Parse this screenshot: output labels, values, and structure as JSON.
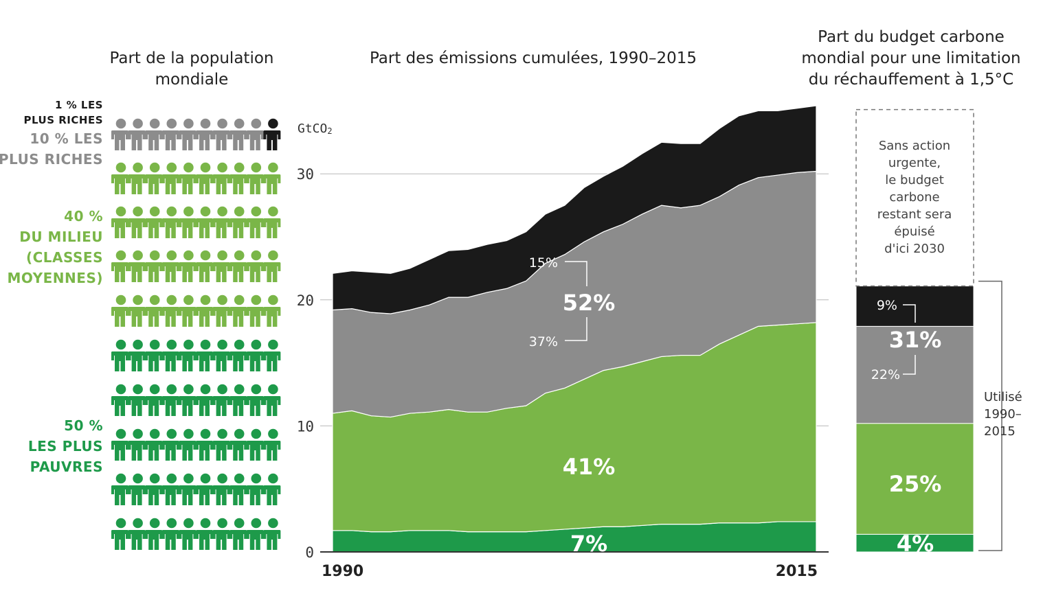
{
  "titles": {
    "population": [
      "Part de la population",
      "mondiale"
    ],
    "emissions": "Part des émissions cumulées, 1990–2015",
    "budget": [
      "Part du budget carbone",
      "mondial pour une limitation",
      "du réchauffement à 1,5°C"
    ]
  },
  "population_groups": [
    {
      "lines": [
        "1 % LES",
        "PLUS RICHES"
      ],
      "color": "#1a1a1a"
    },
    {
      "lines": [
        "10 % LES",
        "PLUS RICHES"
      ],
      "color": "#8c8c8c"
    },
    {
      "lines": [
        "40 %",
        "DU MILIEU",
        "(CLASSES",
        "MOYENNES)"
      ],
      "color": "#7ab648"
    },
    {
      "lines": [
        "50 %",
        "LES PLUS",
        "PAUVRES"
      ],
      "color": "#1e9a4a"
    }
  ],
  "icon_rows": [
    {
      "gray": 9,
      "black": 1
    },
    {
      "color": "light-green"
    },
    {
      "color": "light-green"
    },
    {
      "color": "light-green"
    },
    {
      "color": "light-green"
    },
    {
      "color": "dark-green"
    },
    {
      "color": "dark-green"
    },
    {
      "color": "dark-green"
    },
    {
      "color": "dark-green"
    },
    {
      "color": "dark-green"
    }
  ],
  "colors": {
    "black": "#1a1a1a",
    "gray": "#8c8c8c",
    "light_green": "#7ab648",
    "dark_green": "#1e9a4a"
  },
  "chart_data": [
    {
      "type": "area",
      "stacked": true,
      "title": "Part des émissions cumulées, 1990–2015",
      "ylabel": "GtCO2",
      "ylim": [
        0,
        35
      ],
      "yticks": [
        0,
        10,
        20,
        30
      ],
      "x": [
        1990,
        1991,
        1992,
        1993,
        1994,
        1995,
        1996,
        1997,
        1998,
        1999,
        2000,
        2001,
        2002,
        2003,
        2004,
        2005,
        2006,
        2007,
        2008,
        2009,
        2010,
        2011,
        2012,
        2013,
        2014,
        2015
      ],
      "xtick_labels": [
        "1990",
        "2015"
      ],
      "series": [
        {
          "key": "bottom50",
          "color": "#1e9a4a",
          "values": [
            1.7,
            1.7,
            1.6,
            1.6,
            1.7,
            1.7,
            1.7,
            1.6,
            1.6,
            1.6,
            1.6,
            1.7,
            1.8,
            1.9,
            2.0,
            2.0,
            2.1,
            2.2,
            2.2,
            2.2,
            2.3,
            2.3,
            2.3,
            2.4,
            2.4,
            2.4
          ]
        },
        {
          "key": "middle40",
          "color": "#7ab648",
          "values": [
            9.3,
            9.5,
            9.2,
            9.1,
            9.3,
            9.4,
            9.6,
            9.5,
            9.5,
            9.8,
            10.0,
            10.9,
            11.2,
            11.8,
            12.4,
            12.7,
            13.0,
            13.3,
            13.4,
            13.4,
            14.2,
            14.9,
            15.6,
            15.6,
            15.7,
            15.8
          ]
        },
        {
          "key": "top10",
          "color": "#8c8c8c",
          "values": [
            8.2,
            8.1,
            8.2,
            8.2,
            8.2,
            8.5,
            8.9,
            9.1,
            9.5,
            9.5,
            9.9,
            10.3,
            10.6,
            10.9,
            11.0,
            11.3,
            11.7,
            12.0,
            11.7,
            11.9,
            11.7,
            11.9,
            11.8,
            11.9,
            12.0,
            12.0
          ]
        },
        {
          "key": "top1",
          "color": "#1a1a1a",
          "values": [
            2.9,
            3.0,
            3.2,
            3.2,
            3.3,
            3.6,
            3.7,
            3.8,
            3.8,
            3.8,
            3.9,
            3.9,
            3.9,
            4.3,
            4.4,
            4.6,
            4.8,
            5.0,
            5.1,
            4.9,
            5.4,
            5.5,
            5.3,
            5.1,
            5.1,
            5.2
          ]
        }
      ],
      "labels": {
        "top1": "15%",
        "rich10_total": "52%",
        "top10_rest": "37%",
        "middle40": "41%",
        "bottom50": "7%"
      }
    },
    {
      "type": "bar",
      "stacked": true,
      "title": "Part du budget carbone mondial pour une limitation du réchauffement à 1,5°C",
      "ylim": [
        0,
        35
      ],
      "segments": [
        {
          "key": "bottom50",
          "label": "4%",
          "color": "#1e9a4a",
          "value": 1.4
        },
        {
          "key": "middle40",
          "label": "25%",
          "color": "#7ab648",
          "value": 8.8
        },
        {
          "key": "top10",
          "label": "22%",
          "color": "#8c8c8c",
          "value": 7.7
        },
        {
          "key": "top1",
          "label": "9%",
          "color": "#1a1a1a",
          "value": 3.2
        }
      ],
      "rich10_total_label": "31%",
      "remaining": {
        "value": 14.0,
        "lines": [
          "Sans action",
          "urgente,",
          "le budget",
          "carbone",
          "restant sera",
          "épuisé",
          "d'ici 2030"
        ]
      },
      "used_label": [
        "Utilisé",
        "1990–",
        "2015"
      ]
    }
  ]
}
